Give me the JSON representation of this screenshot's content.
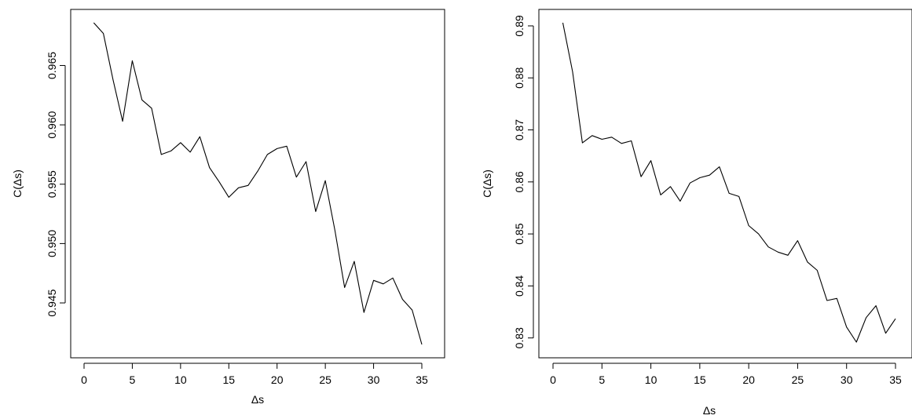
{
  "chart_data": [
    {
      "type": "line",
      "title": "",
      "xlabel": "Δs",
      "ylabel": "C(Δs)",
      "xlim": [
        0,
        35
      ],
      "ylim": [
        0.9415,
        0.9686
      ],
      "xticks": [
        0,
        5,
        10,
        15,
        20,
        25,
        30,
        35
      ],
      "yticks": [
        0.945,
        0.95,
        0.955,
        0.96,
        0.965
      ],
      "grid": false,
      "legend": "none",
      "line_color": "#000000",
      "series": [
        {
          "x": [
            1,
            2,
            3,
            4,
            5,
            6,
            7,
            8,
            9,
            10,
            11,
            12,
            13,
            14,
            15,
            16,
            17,
            18,
            19,
            20,
            21,
            22,
            23,
            24,
            25,
            26,
            27,
            28,
            29,
            30,
            31,
            32,
            33,
            34,
            35
          ],
          "y": [
            0.9686,
            0.9677,
            0.9638,
            0.9603,
            0.9654,
            0.9621,
            0.9614,
            0.9575,
            0.9578,
            0.9585,
            0.9577,
            0.959,
            0.9564,
            0.9552,
            0.9539,
            0.9547,
            0.9549,
            0.9561,
            0.9575,
            0.958,
            0.9582,
            0.9556,
            0.9569,
            0.9527,
            0.9553,
            0.9511,
            0.9463,
            0.9485,
            0.9442,
            0.9469,
            0.9466,
            0.9471,
            0.9453,
            0.9444,
            0.9415
          ]
        }
      ]
    },
    {
      "type": "line",
      "title": "",
      "xlabel": "Δs",
      "ylabel": "C(Δs)",
      "xlim": [
        0,
        35
      ],
      "ylim": [
        0.8292,
        0.8906
      ],
      "xticks": [
        0,
        5,
        10,
        15,
        20,
        25,
        30,
        35
      ],
      "yticks": [
        0.83,
        0.84,
        0.85,
        0.86,
        0.87,
        0.88,
        0.89
      ],
      "grid": false,
      "legend": "none",
      "line_color": "#000000",
      "series": [
        {
          "x": [
            1,
            2,
            3,
            4,
            5,
            6,
            7,
            8,
            9,
            10,
            11,
            12,
            13,
            14,
            15,
            16,
            17,
            18,
            19,
            20,
            21,
            22,
            23,
            24,
            25,
            26,
            27,
            28,
            29,
            30,
            31,
            32,
            33,
            34,
            35
          ],
          "y": [
            0.8906,
            0.8812,
            0.8675,
            0.8689,
            0.8682,
            0.8686,
            0.8674,
            0.8679,
            0.861,
            0.8641,
            0.8575,
            0.8591,
            0.8563,
            0.8598,
            0.8608,
            0.8613,
            0.8629,
            0.8578,
            0.8572,
            0.8516,
            0.85,
            0.8475,
            0.8465,
            0.8459,
            0.8487,
            0.8446,
            0.843,
            0.8372,
            0.8376,
            0.8321,
            0.8292,
            0.8339,
            0.8362,
            0.8309,
            0.8337
          ]
        }
      ]
    }
  ]
}
